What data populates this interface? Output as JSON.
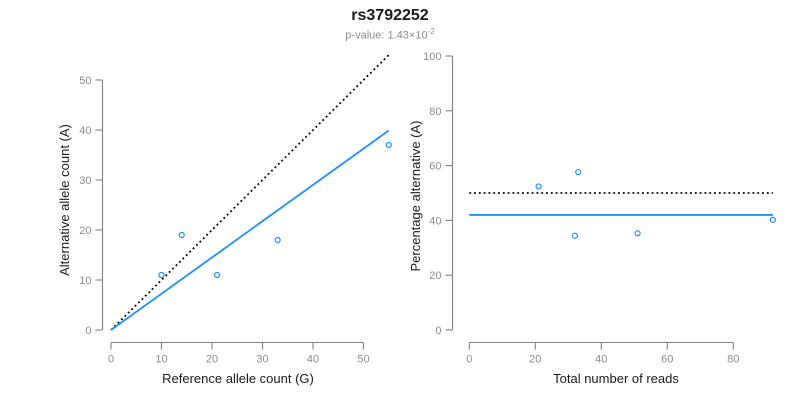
{
  "header": {
    "title": "rs3792252",
    "pvalue_label": "p-value: 1.43×10",
    "pvalue_exponent": "-2"
  },
  "colors": {
    "accent_blue": "#1E90FF",
    "line_black": "#000000",
    "axis_gray": "#808080",
    "tick_label_gray": "#8C8C8C",
    "axis_title_color": "#1A1A1A",
    "subtitle_gray": "#8C8C8C"
  },
  "chart_data": [
    {
      "name": "allele-count-scatter",
      "type": "scatter",
      "title": "",
      "xlabel": "Reference allele count (G)",
      "ylabel": "Alternative allele count (A)",
      "xlim": [
        0,
        55
      ],
      "ylim": [
        0,
        55
      ],
      "xticks": [
        0,
        10,
        20,
        30,
        40,
        50
      ],
      "yticks": [
        0,
        10,
        20,
        30,
        40,
        50
      ],
      "grid": false,
      "legend": false,
      "points": [
        [
          10,
          11
        ],
        [
          14,
          19
        ],
        [
          21,
          11
        ],
        [
          33,
          18
        ],
        [
          55,
          37
        ]
      ],
      "lines": [
        {
          "name": "identity-line",
          "style": "dotted",
          "color": "#000000",
          "x1": 0,
          "y1": 0,
          "x2": 55,
          "y2": 55
        },
        {
          "name": "fit-line",
          "style": "solid",
          "color": "#1E90FF",
          "x1": 0,
          "y1": 0,
          "x2": 55,
          "y2": 39.9
        }
      ]
    },
    {
      "name": "percentage-alternative-scatter",
      "type": "scatter",
      "title": "",
      "xlabel": "Total number of reads",
      "ylabel": "Percentage alternative (A)",
      "xlim": [
        0,
        92
      ],
      "ylim": [
        0,
        100
      ],
      "xticks": [
        0,
        20,
        40,
        60,
        80
      ],
      "yticks": [
        0,
        20,
        40,
        60,
        80,
        100
      ],
      "grid": false,
      "legend": false,
      "points": [
        [
          21,
          52.4
        ],
        [
          33,
          57.6
        ],
        [
          32,
          34.4
        ],
        [
          51,
          35.3
        ],
        [
          92,
          40.2
        ]
      ],
      "lines": [
        {
          "name": "expected-50pct-line",
          "style": "dotted",
          "color": "#000000",
          "x1": 0,
          "y1": 50,
          "x2": 92,
          "y2": 50
        },
        {
          "name": "mean-percentage-line",
          "style": "solid",
          "color": "#1E90FF",
          "x1": 0,
          "y1": 42,
          "x2": 92,
          "y2": 42
        }
      ]
    }
  ]
}
